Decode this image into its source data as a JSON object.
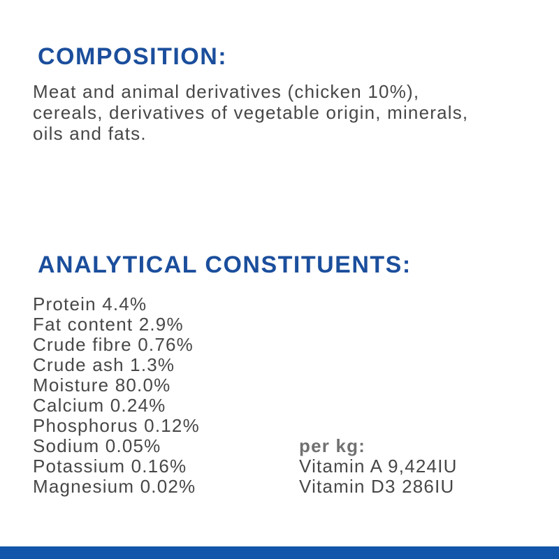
{
  "page": {
    "background_color": "#ffffff",
    "heading_color": "#1b4e9c",
    "body_text_color": "#474747",
    "per_kg_label_color": "#717171",
    "bottom_bar_color": "#1156ab"
  },
  "composition": {
    "heading": "COMPOSITION:",
    "lines": [
      "Meat and animal derivatives (chicken 10%),",
      "cereals, derivatives of vegetable origin, minerals,",
      "oils and fats."
    ]
  },
  "analytical": {
    "heading": "ANALYTICAL CONSTITUENTS:",
    "items": [
      "Protein 4.4%",
      "Fat content 2.9%",
      "Crude fibre 0.76%",
      "Crude ash 1.3%",
      "Moisture 80.0%",
      "Calcium 0.24%",
      "Phosphorus 0.12%",
      "Sodium 0.05%",
      "Potassium 0.16%",
      "Magnesium 0.02%"
    ],
    "per_kg": {
      "label": "per kg:",
      "items": [
        "Vitamin A 9,424IU",
        "Vitamin D3 286IU"
      ]
    }
  }
}
